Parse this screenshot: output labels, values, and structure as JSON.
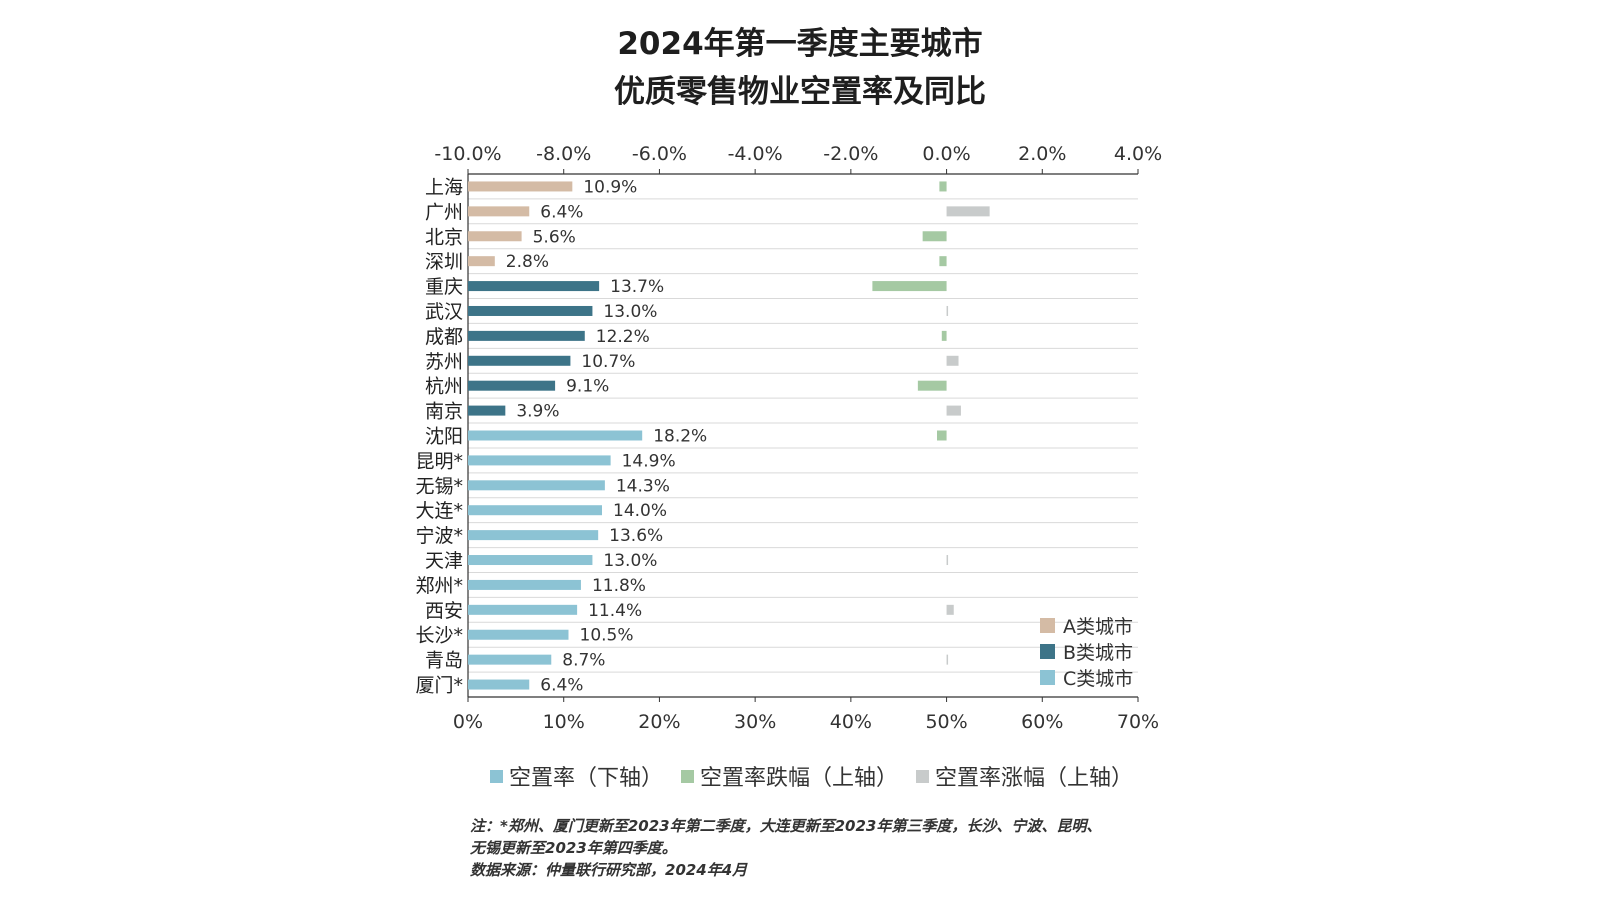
{
  "title_line1": "2024年第一季度主要城市",
  "title_line2": "优质零售物业空置率及同比",
  "chart_data": {
    "type": "bar",
    "orientation": "horizontal",
    "categories": [
      "上海",
      "广州",
      "北京",
      "深圳",
      "重庆",
      "武汉",
      "成都",
      "苏州",
      "杭州",
      "南京",
      "沈阳",
      "昆明*",
      "无锡*",
      "大连*",
      "宁波*",
      "天津",
      "郑州*",
      "西安",
      "长沙*",
      "青岛",
      "厦门*"
    ],
    "city_class": [
      "A",
      "A",
      "A",
      "A",
      "B",
      "B",
      "B",
      "B",
      "B",
      "B",
      "C",
      "C",
      "C",
      "C",
      "C",
      "C",
      "C",
      "C",
      "C",
      "C",
      "C"
    ],
    "series": [
      {
        "name": "空置率（下轴）",
        "axis": "bottom",
        "values": [
          10.9,
          6.4,
          5.6,
          2.8,
          13.7,
          13.0,
          12.2,
          10.7,
          9.1,
          3.9,
          18.2,
          14.9,
          14.3,
          14.0,
          13.6,
          13.0,
          11.8,
          11.4,
          10.5,
          8.7,
          6.4
        ],
        "labels": [
          "10.9%",
          "6.4%",
          "5.6%",
          "2.8%",
          "13.7%",
          "13.0%",
          "12.2%",
          "10.7%",
          "9.1%",
          "3.9%",
          "18.2%",
          "14.9%",
          "14.3%",
          "14.0%",
          "13.6%",
          "13.0%",
          "11.8%",
          "11.4%",
          "10.5%",
          "8.7%",
          "6.4%"
        ]
      },
      {
        "name_decline": "空置率跌幅（上轴）",
        "name_rise": "空置率涨幅（上轴）",
        "axis": "top",
        "values": [
          -0.15,
          0.9,
          -0.5,
          -0.15,
          -1.55,
          0.0,
          -0.1,
          0.25,
          -0.6,
          0.3,
          -0.2,
          null,
          null,
          null,
          null,
          0.0,
          null,
          0.15,
          null,
          0.0,
          null
        ]
      }
    ],
    "top_axis": {
      "min": -10,
      "max": 4,
      "ticks": [
        "-10.0%",
        "-8.0%",
        "-6.0%",
        "-4.0%",
        "-2.0%",
        "0.0%",
        "2.0%",
        "4.0%"
      ]
    },
    "bottom_axis": {
      "min": 0,
      "max": 70,
      "ticks": [
        "0%",
        "10%",
        "20%",
        "30%",
        "40%",
        "50%",
        "60%",
        "70%"
      ]
    },
    "colors": {
      "A": "#d4bba5",
      "B": "#3d7488",
      "C": "#8cc3d4",
      "decline": "#a5c9a3",
      "rise": "#c8cbcb"
    },
    "class_legend": [
      "A类城市",
      "B类城市",
      "C类城市"
    ],
    "legend": [
      "空置率（下轴）",
      "空置率跌幅（上轴）",
      "空置率涨幅（上轴）"
    ]
  },
  "notes": {
    "line1": "注：*郑州、厦门更新至2023年第二季度，大连更新至2023年第三季度，长沙、宁波、昆明、",
    "line2": "无锡更新至2023年第四季度。",
    "line3": "数据来源：仲量联行研究部，2024年4月"
  }
}
